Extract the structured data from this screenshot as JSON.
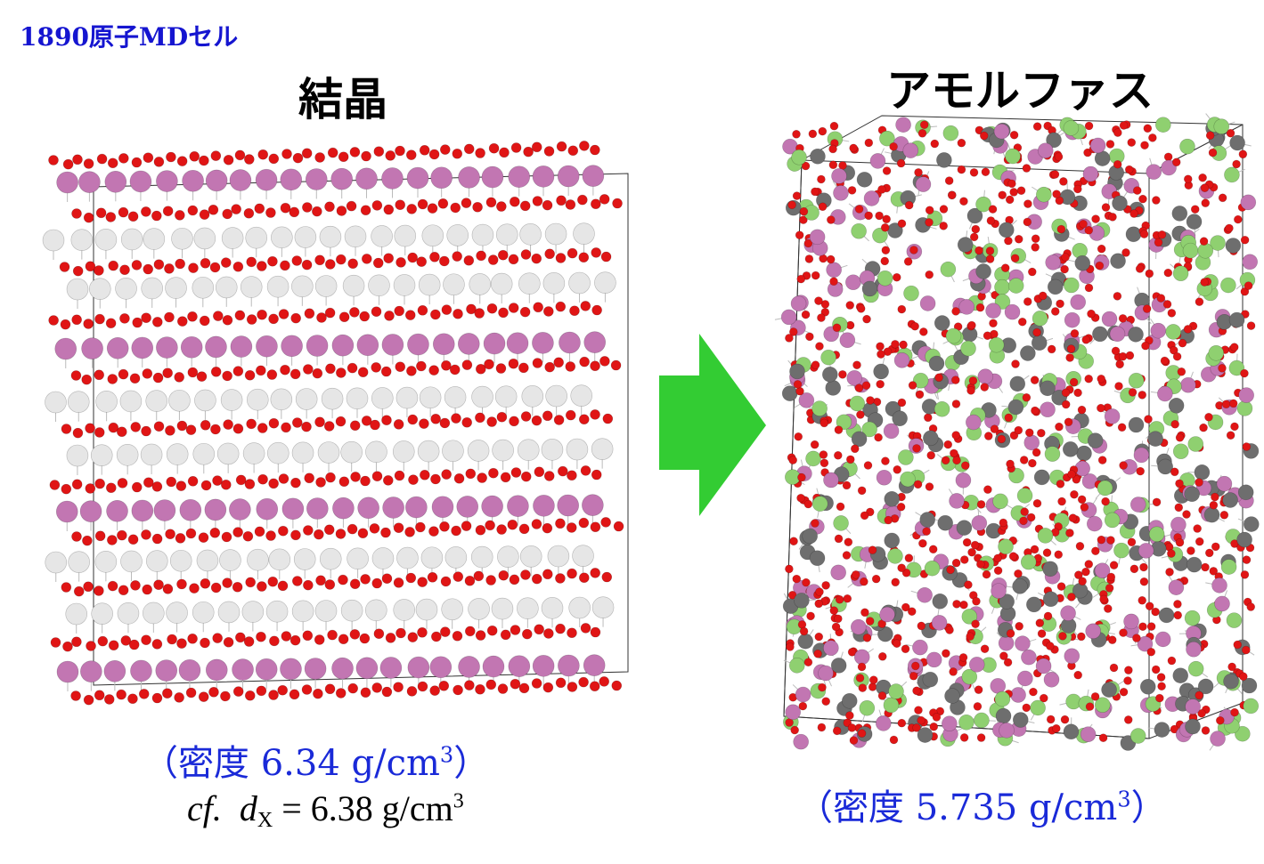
{
  "header": "1890原子MDセル",
  "crystal": {
    "title": "結晶",
    "density": {
      "prefix": "（密度 6.34 g/cm",
      "sup": "3",
      "suffix": "）"
    },
    "reference": {
      "cf": "cf.",
      "symbol": "d",
      "subscript": "X",
      "value": " = 6.38 g/cm",
      "sup": "3"
    }
  },
  "amorphous": {
    "title": "アモルファス",
    "density": {
      "prefix": "（密度 5.735 g/cm",
      "sup": "3",
      "suffix": "）"
    }
  }
}
